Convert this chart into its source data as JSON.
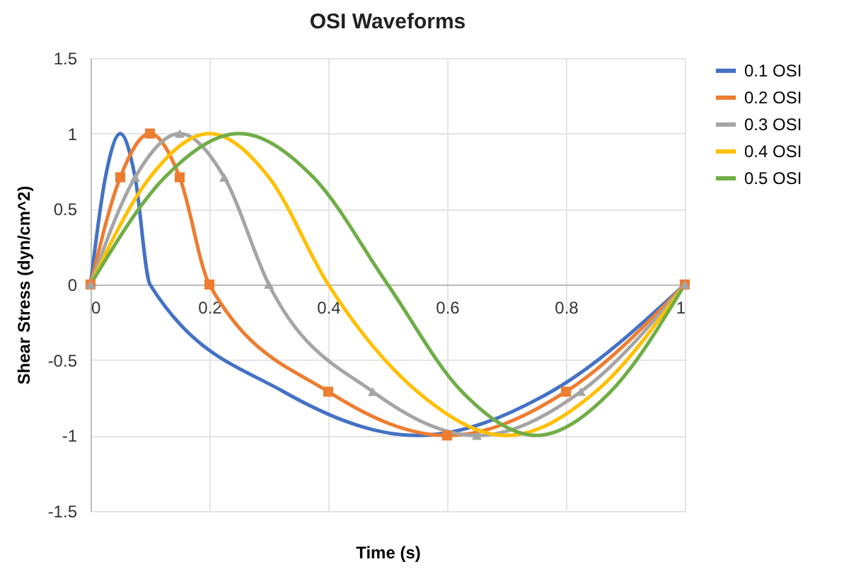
{
  "chart_data": {
    "type": "line",
    "title": "OSI Waveforms",
    "xlabel": "Time (s)",
    "ylabel": "Shear Stress (dyn/cm^2)",
    "xlim": [
      0,
      1
    ],
    "xticks": [
      0,
      0.2,
      0.4,
      0.6,
      0.8,
      1
    ],
    "ylim": [
      -1.5,
      1.5
    ],
    "yticks": [
      -1.5,
      -1,
      -0.5,
      0,
      0.5,
      1,
      1.5
    ],
    "grid": true,
    "legend": "right",
    "series": [
      {
        "name": "0.1 OSI",
        "color": "#4472c4",
        "marker": "none",
        "x": [
          0,
          0.025,
          0.05,
          0.075,
          0.1,
          0.325,
          0.55,
          0.775,
          1
        ],
        "values": [
          0,
          0.71,
          1,
          0.71,
          0,
          -0.71,
          -1,
          -0.71,
          0
        ]
      },
      {
        "name": "0.2 OSI",
        "color": "#ed7d31",
        "marker": "square",
        "x": [
          0,
          0.05,
          0.1,
          0.15,
          0.2,
          0.4,
          0.6,
          0.8,
          1
        ],
        "values": [
          0,
          0.71,
          1,
          0.71,
          0,
          -0.71,
          -1,
          -0.71,
          0
        ]
      },
      {
        "name": "0.3 OSI",
        "color": "#a5a5a5",
        "marker": "triangle",
        "x": [
          0,
          0.075,
          0.15,
          0.225,
          0.3,
          0.475,
          0.65,
          0.825,
          1
        ],
        "values": [
          0,
          0.71,
          1,
          0.71,
          0,
          -0.71,
          -1,
          -0.71,
          0
        ]
      },
      {
        "name": "0.4 OSI",
        "color": "#ffc000",
        "marker": "none",
        "x": [
          0,
          0.1,
          0.2,
          0.3,
          0.4,
          0.55,
          0.7,
          0.85,
          1
        ],
        "values": [
          0,
          0.71,
          1,
          0.71,
          0,
          -0.71,
          -1,
          -0.71,
          0
        ]
      },
      {
        "name": "0.5 OSI",
        "color": "#70ad47",
        "marker": "none",
        "x": [
          0,
          0.125,
          0.25,
          0.375,
          0.5,
          0.625,
          0.75,
          0.875,
          1
        ],
        "values": [
          0,
          0.71,
          1,
          0.71,
          0,
          -0.71,
          -1,
          -0.71,
          0
        ]
      }
    ]
  }
}
